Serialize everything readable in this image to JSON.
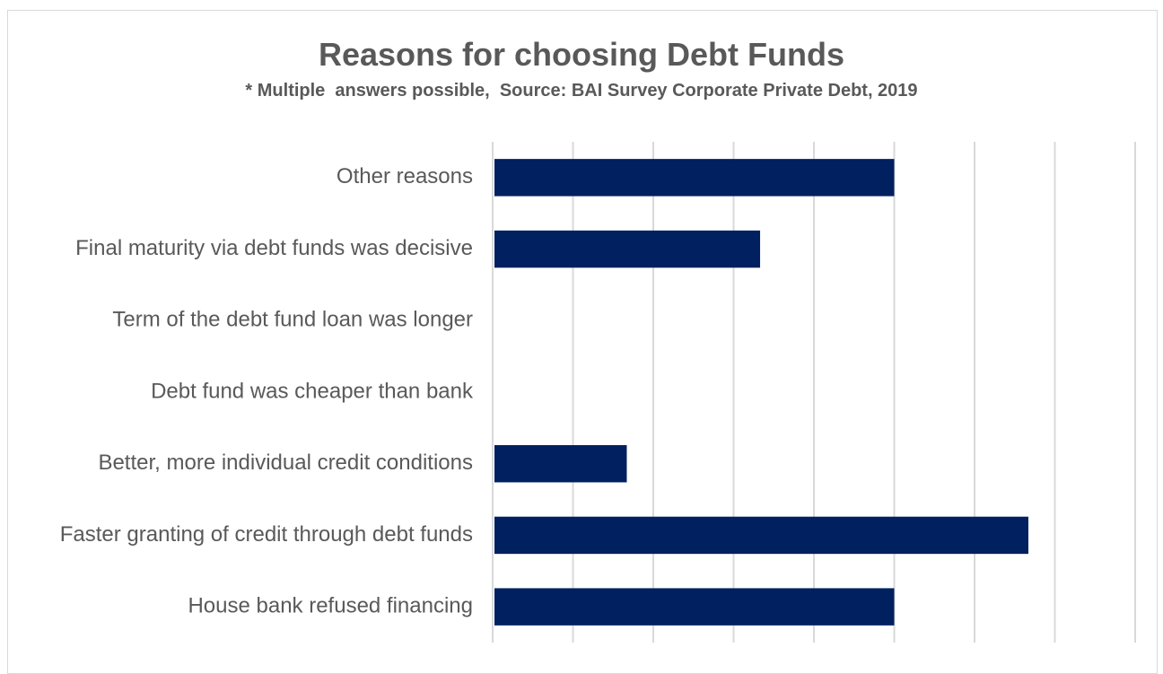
{
  "chart_data": {
    "type": "bar",
    "orientation": "horizontal",
    "title": "Reasons for choosing Debt Funds",
    "subtitle": "* Multiple  answers possible,  Source: BAI Survey Corporate Private Debt, 2019",
    "categories": [
      "Other reasons",
      "Final maturity via debt funds was decisive",
      "Term of the debt fund loan was longer",
      "Debt fund was cheaper than bank",
      "Better, more individual credit conditions",
      "Faster granting of credit through debt funds",
      "House bank refused financing"
    ],
    "values": [
      5,
      3.33,
      0,
      0,
      1.67,
      6.67,
      5
    ],
    "xlim": [
      0,
      8
    ],
    "grid": true,
    "bar_color": "#002060",
    "grid_color": "#d9d9d9",
    "text_color": "#595959"
  }
}
